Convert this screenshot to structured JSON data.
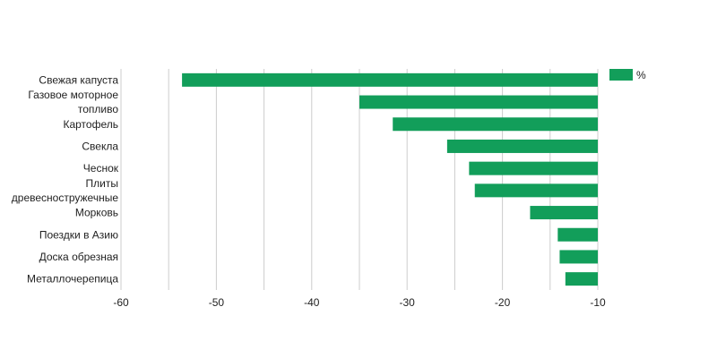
{
  "chart_data": {
    "type": "bar",
    "orientation": "horizontal",
    "categories": [
      "Свежая капуста",
      "Газовое моторное топливо",
      "Картофель",
      "Свекла",
      "Чеснок",
      "Плиты древесностружечные",
      "Морковь",
      "Поездки в Азию",
      "Доска обрезная",
      "Металлочерепица"
    ],
    "category_lines": [
      [
        "Свежая капуста"
      ],
      [
        "Газовое моторное",
        "топливо"
      ],
      [
        "Картофель"
      ],
      [
        "Свекла"
      ],
      [
        "Чеснок"
      ],
      [
        "Плиты",
        "древесностружечные"
      ],
      [
        "Морковь"
      ],
      [
        "Поездки в Азию"
      ],
      [
        "Доска обрезная"
      ],
      [
        "Металлочерепица"
      ]
    ],
    "series": [
      {
        "name": "%",
        "color": "#129e5a",
        "values": [
          -53.6,
          -35.0,
          -31.5,
          -25.8,
          -23.5,
          -22.9,
          -17.1,
          -14.2,
          -14.0,
          -13.4
        ]
      }
    ],
    "xlim": [
      -60,
      -10
    ],
    "xticks": [
      -60,
      -50,
      -40,
      -30,
      -20,
      -10
    ],
    "xtick_labels": [
      "-60",
      "-50",
      "-40",
      "-30",
      "-20",
      "-10"
    ],
    "grid": true,
    "legend": "top-right",
    "gridline_color": "#cccccc"
  }
}
